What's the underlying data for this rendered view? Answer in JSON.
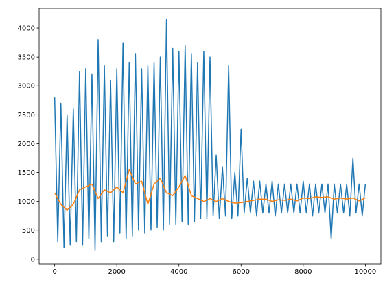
{
  "chart_data": {
    "type": "line",
    "xlim": [
      -500,
      10500
    ],
    "xticks": [
      0,
      2000,
      4000,
      6000,
      8000,
      10000
    ],
    "ylim": [
      -85,
      4345
    ],
    "yticks": [
      0,
      500,
      1000,
      1500,
      2000,
      2500,
      3000,
      3500,
      4000
    ],
    "series": [
      {
        "color": "#1f77b4",
        "x": [
          0,
          100,
          200,
          300,
          400,
          500,
          600,
          700,
          800,
          900,
          1000,
          1100,
          1200,
          1300,
          1400,
          1500,
          1600,
          1700,
          1800,
          1900,
          2000,
          2100,
          2200,
          2300,
          2400,
          2500,
          2600,
          2700,
          2800,
          2900,
          3000,
          3100,
          3200,
          3300,
          3400,
          3500,
          3600,
          3700,
          3800,
          3900,
          4000,
          4100,
          4200,
          4300,
          4400,
          4500,
          4600,
          4700,
          4800,
          4900,
          5000,
          5100,
          5200,
          5300,
          5400,
          5500,
          5600,
          5700,
          5800,
          5900,
          6000,
          6100,
          6200,
          6300,
          6400,
          6500,
          6600,
          6700,
          6800,
          6900,
          7000,
          7100,
          7200,
          7300,
          7400,
          7500,
          7600,
          7700,
          7800,
          7900,
          8000,
          8100,
          8200,
          8300,
          8400,
          8500,
          8600,
          8700,
          8800,
          8900,
          9000,
          9100,
          9200,
          9300,
          9400,
          9500,
          9600,
          9700,
          9800,
          9900,
          10000
        ],
        "values": [
          2800,
          300,
          2700,
          200,
          2500,
          250,
          2600,
          300,
          3250,
          250,
          3300,
          350,
          3200,
          150,
          3800,
          300,
          3350,
          400,
          3100,
          300,
          3300,
          450,
          3750,
          350,
          3400,
          400,
          3550,
          500,
          3300,
          450,
          3350,
          500,
          3400,
          550,
          3500,
          500,
          4150,
          600,
          3650,
          600,
          3600,
          650,
          3700,
          600,
          3550,
          650,
          3400,
          700,
          3600,
          700,
          3500,
          750,
          1800,
          700,
          1600,
          750,
          3350,
          700,
          1500,
          750,
          2250,
          800,
          1400,
          800,
          1350,
          750,
          1350,
          800,
          1300,
          800,
          1350,
          750,
          1300,
          800,
          1300,
          800,
          1300,
          800,
          1300,
          800,
          1350,
          800,
          1300,
          750,
          1300,
          800,
          1300,
          800,
          1300,
          350,
          1300,
          800,
          1300,
          800,
          1300,
          750,
          1750,
          800,
          1300,
          750,
          1300
        ]
      },
      {
        "color": "#ff7f0e",
        "x": [
          0,
          200,
          400,
          600,
          800,
          1000,
          1200,
          1400,
          1600,
          1800,
          2000,
          2200,
          2400,
          2600,
          2800,
          3000,
          3200,
          3400,
          3600,
          3800,
          4000,
          4200,
          4400,
          4600,
          4800,
          5000,
          5200,
          5400,
          5600,
          5800,
          6000,
          6200,
          6400,
          6600,
          6800,
          7000,
          7200,
          7400,
          7600,
          7800,
          8000,
          8200,
          8400,
          8600,
          8800,
          9000,
          9200,
          9400,
          9600,
          9800,
          10000
        ],
        "values": [
          1150,
          950,
          850,
          950,
          1200,
          1250,
          1300,
          1050,
          1200,
          1150,
          1250,
          1150,
          1550,
          1300,
          1350,
          950,
          1300,
          1400,
          1150,
          1100,
          1250,
          1450,
          1100,
          1050,
          1000,
          1050,
          1000,
          1050,
          1000,
          970,
          980,
          1000,
          1020,
          1040,
          1040,
          1000,
          1030,
          1020,
          1040,
          1010,
          1060,
          1050,
          1080,
          1070,
          1080,
          1040,
          1060,
          1040,
          1060,
          1010,
          1060
        ]
      }
    ]
  }
}
